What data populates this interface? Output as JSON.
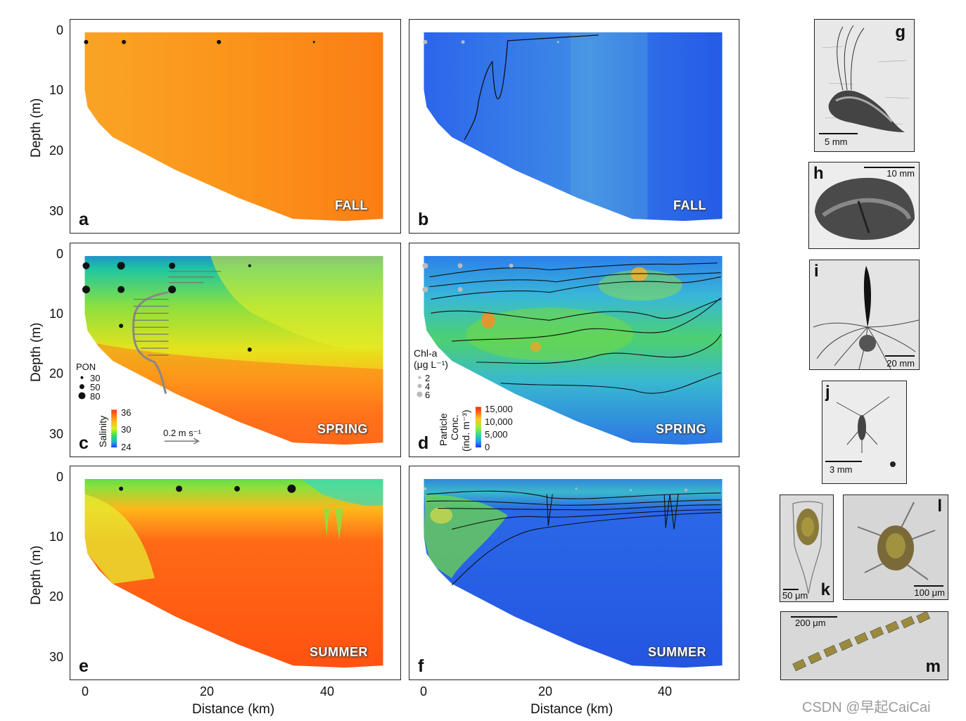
{
  "chart_data": [
    {
      "type": "heatmap",
      "panel": "a",
      "season": "FALL",
      "variable": "Salinity",
      "ylabel": "Depth (m)",
      "xlabel": "",
      "yticks": [
        "0",
        "10",
        "20",
        "30"
      ],
      "xlim": [
        0,
        50
      ],
      "ylim": [
        0,
        32
      ],
      "stations_depth_m": [
        [
          0,
          2
        ],
        [
          6,
          2
        ],
        [
          22,
          2
        ],
        [
          38,
          2
        ]
      ]
    },
    {
      "type": "heatmap",
      "panel": "b",
      "season": "FALL",
      "variable": "Particle concentration",
      "ylabel": "",
      "xlabel": ""
    },
    {
      "type": "heatmap",
      "panel": "c",
      "season": "SPRING",
      "variable": "Salinity",
      "ylabel": "Depth (m)",
      "yticks": [
        "0",
        "10",
        "20",
        "30"
      ],
      "pon_legend": {
        "title": "PON",
        "values": [
          "30",
          "50",
          "80"
        ]
      },
      "salinity_colorbar": {
        "label": "Salinity",
        "ticks": [
          "36",
          "30",
          "24"
        ]
      },
      "velocity_scale": "0.2 m s⁻¹"
    },
    {
      "type": "heatmap",
      "panel": "d",
      "season": "SPRING",
      "variable": "Particle concentration",
      "chla_legend": {
        "title": "Chl-a",
        "units": "(μg L⁻¹)",
        "values": [
          "2",
          "4",
          "6"
        ]
      },
      "particle_colorbar": {
        "label": "Particle",
        "label2": "Conc.",
        "label3": "(ind. m⁻³)",
        "ticks": [
          "15,000",
          "10,000",
          "5,000",
          "0"
        ]
      }
    },
    {
      "type": "heatmap",
      "panel": "e",
      "season": "SUMMER",
      "variable": "Salinity",
      "ylabel": "Depth (m)",
      "xlabel": "Distance (km)",
      "yticks": [
        "0",
        "10",
        "20",
        "30"
      ],
      "xticks": [
        "0",
        "20",
        "40"
      ]
    },
    {
      "type": "heatmap",
      "panel": "f",
      "season": "SUMMER",
      "variable": "Particle concentration",
      "xlabel": "Distance (km)",
      "xticks": [
        "0",
        "20",
        "40"
      ]
    }
  ],
  "panels": {
    "a": {
      "letter": "a",
      "season": "FALL"
    },
    "b": {
      "letter": "b",
      "season": "FALL"
    },
    "c": {
      "letter": "c",
      "season": "SPRING"
    },
    "d": {
      "letter": "d",
      "season": "SPRING"
    },
    "e": {
      "letter": "e",
      "season": "SUMMER"
    },
    "f": {
      "letter": "f",
      "season": "SUMMER"
    }
  },
  "axes": {
    "ylabel": "Depth (m)",
    "xlabel": "Distance (km)",
    "yticks": [
      "0",
      "10",
      "20",
      "30"
    ],
    "xticks": [
      "0",
      "20",
      "40"
    ]
  },
  "legend_c": {
    "pon_title": "PON",
    "pon_values": [
      "30",
      "50",
      "80"
    ],
    "salinity_label": "Salinity",
    "salinity_ticks": [
      "36",
      "30",
      "24"
    ],
    "velocity_scale": "0.2 m s⁻¹"
  },
  "legend_d": {
    "chla_title": "Chl-a",
    "chla_units": "(μg L⁻¹)",
    "chla_values": [
      "2",
      "4",
      "6"
    ],
    "particle_label1": "Particle",
    "particle_label2": "Conc.",
    "particle_label3": "(ind. m⁻³)",
    "particle_ticks": [
      "15,000",
      "10,000",
      "5,000",
      "0"
    ]
  },
  "images": {
    "g": {
      "letter": "g",
      "scale": "5 mm"
    },
    "h": {
      "letter": "h",
      "scale": "10 mm"
    },
    "i": {
      "letter": "i",
      "scale": "20 mm"
    },
    "j": {
      "letter": "j",
      "scale": "3 mm"
    },
    "k": {
      "letter": "k",
      "scale": "50 μm"
    },
    "l": {
      "letter": "l",
      "scale": "100 μm"
    },
    "m": {
      "letter": "m",
      "scale": "200 μm"
    }
  },
  "watermark": "CSDN @早起CaiCai",
  "colors": {
    "salinity_high": "#ff5500",
    "salinity_mid": "#2ed64a",
    "salinity_low": "#2050ff",
    "particle_low": "#1f4fe0"
  }
}
